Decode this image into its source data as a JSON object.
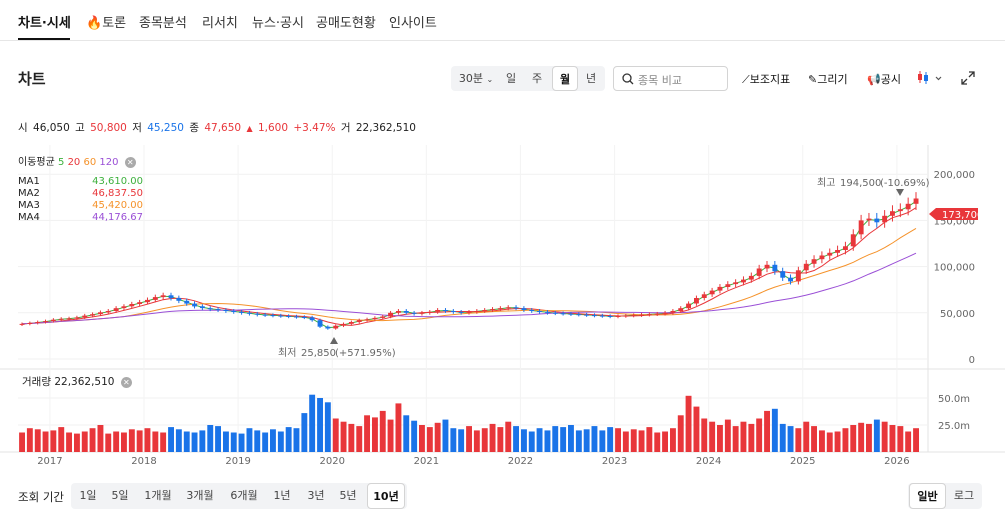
{
  "nav": {
    "tabs": [
      "차트·시세",
      "토론",
      "종목분석",
      "리서치",
      "뉴스·공시",
      "공매도현황",
      "인사이트"
    ],
    "fire_icon": "fire-icon"
  },
  "chart_header": {
    "title": "차트",
    "interval": "30분",
    "periods": [
      "일",
      "주",
      "월",
      "년"
    ],
    "selected_period": "월",
    "search_placeholder": "종목 비교",
    "tools": [
      "보조지표",
      "그리기",
      "공시"
    ]
  },
  "ohlc": {
    "open_label": "시",
    "open": "46,050",
    "high_label": "고",
    "high": "50,800",
    "low_label": "저",
    "low": "45,250",
    "close_label": "종",
    "close": "47,650",
    "change": "1,600",
    "change_pct": "+3.47%",
    "volume_label": "거",
    "volume": "22,362,510"
  },
  "ma_legend": {
    "title": "이동평균",
    "periods": [
      "5",
      "20",
      "60",
      "120"
    ],
    "rows": [
      {
        "name": "MA1",
        "value": "43,610.00",
        "color": "#3cb03c"
      },
      {
        "name": "MA2",
        "value": "46,837.50",
        "color": "#e8363a"
      },
      {
        "name": "MA3",
        "value": "45,420.00",
        "color": "#f5922a"
      },
      {
        "name": "MA4",
        "value": "44,176.67",
        "color": "#9a4fd6"
      }
    ]
  },
  "annotations": {
    "high_label": "최고",
    "high_value": "194,500",
    "high_pct": "(-10.69%)",
    "low_label": "최저",
    "low_value": "25,850",
    "low_pct": "(+571.95%)",
    "current_price": "173,700"
  },
  "volume_legend": {
    "label": "거래량",
    "value": "22,362,510"
  },
  "bottom": {
    "period_label": "조회 기간",
    "ranges": [
      "1일",
      "5일",
      "1개월",
      "3개월",
      "6개월",
      "1년",
      "3년",
      "5년",
      "10년"
    ],
    "selected_range": "10년",
    "scales": [
      "일반",
      "로그"
    ],
    "selected_scale": "일반"
  },
  "colors": {
    "up": "#e8363a",
    "down": "#1a73e8",
    "ma5": "#3cb03c",
    "ma20": "#e8363a",
    "ma60": "#f5922a",
    "ma120": "#9a4fd6"
  },
  "chart_data": {
    "type": "candlestick",
    "price_axis": {
      "ticks": [
        0,
        50000,
        100000,
        150000,
        200000
      ],
      "tick_labels": [
        "0",
        "50,000",
        "100,000",
        "150,000",
        "200,000"
      ],
      "ylim": [
        0,
        210000
      ]
    },
    "volume_axis": {
      "ticks": [
        25000000,
        50000000
      ],
      "tick_labels": [
        "25.0m",
        "50.0m"
      ],
      "ylim": [
        0,
        62000000
      ]
    },
    "x_years": [
      "2017",
      "2018",
      "2019",
      "2020",
      "2021",
      "2022",
      "2023",
      "2024",
      "2025",
      "2026"
    ],
    "monthly_close": [
      38000,
      39000,
      40000,
      41000,
      42500,
      43500,
      44000,
      45000,
      47000,
      48500,
      50500,
      52000,
      55000,
      57000,
      59500,
      61500,
      64000,
      67000,
      69000,
      66000,
      63000,
      60000,
      57000,
      55000,
      54000,
      53000,
      52000,
      51000,
      50000,
      49000,
      48000,
      47500,
      47000,
      46500,
      46000,
      45500,
      45000,
      42000,
      35000,
      33000,
      36000,
      38000,
      40000,
      42000,
      43000,
      44500,
      46000,
      50000,
      52000,
      50000,
      49000,
      50000,
      51000,
      53000,
      52000,
      51000,
      50000,
      51000,
      52000,
      53000,
      54000,
      55000,
      56000,
      55000,
      53000,
      52000,
      51000,
      50000,
      49500,
      49000,
      48500,
      48000,
      47500,
      47000,
      46500,
      46000,
      46500,
      47000,
      47500,
      48000,
      48500,
      49000,
      50000,
      52000,
      55000,
      60000,
      66000,
      70000,
      74000,
      78000,
      81000,
      83000,
      86000,
      90000,
      98000,
      102000,
      95000,
      88000,
      84000,
      96000,
      103000,
      108000,
      112000,
      115000,
      118000,
      122000,
      135000,
      150000,
      152000,
      148000,
      155000,
      160000,
      162000,
      168000,
      173700
    ],
    "monthly_volume_m": [
      18,
      22,
      21,
      19,
      20,
      23,
      18,
      17,
      19,
      22,
      25,
      17,
      19,
      18,
      21,
      20,
      22,
      19,
      18,
      23,
      21,
      19,
      18,
      20,
      25,
      24,
      19,
      18,
      17,
      22,
      20,
      18,
      21,
      19,
      23,
      22,
      36,
      53,
      50,
      46,
      31,
      28,
      26,
      24,
      34,
      32,
      38,
      30,
      45,
      34,
      29,
      25,
      23,
      27,
      30,
      22,
      21,
      24,
      20,
      22,
      26,
      23,
      28,
      24,
      21,
      19,
      22,
      20,
      24,
      23,
      25,
      20,
      21,
      24,
      20,
      23,
      22,
      19,
      21,
      20,
      23,
      18,
      19,
      22,
      34,
      52,
      42,
      31,
      28,
      25,
      30,
      24,
      28,
      26,
      31,
      38,
      40,
      26,
      24,
      22,
      28,
      24,
      20,
      18,
      19,
      22,
      25,
      27,
      26,
      30,
      28,
      25,
      24,
      19,
      22
    ]
  }
}
